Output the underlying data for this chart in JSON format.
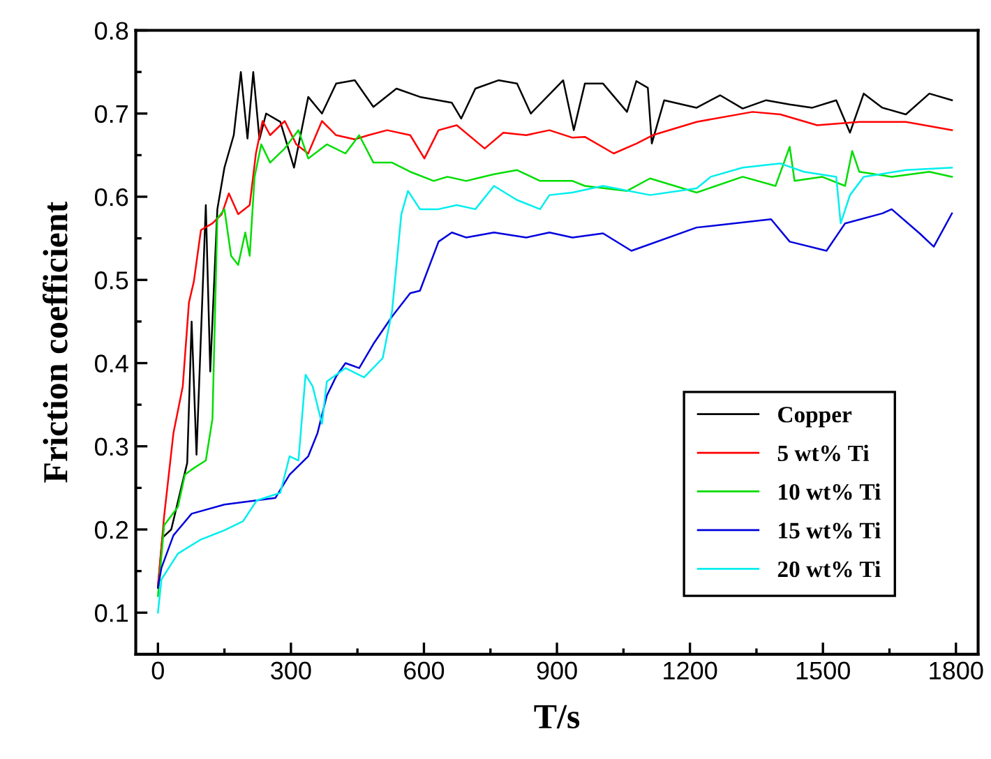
{
  "chart_data": {
    "type": "line",
    "xlabel": "T/s",
    "ylabel": "Friction coefficient",
    "xlim": [
      -50,
      1850
    ],
    "ylim": [
      0.05,
      0.8
    ],
    "xticks": [
      0,
      300,
      600,
      900,
      1200,
      1500,
      1800
    ],
    "yticks": [
      {
        "value": 0.1,
        "label": "0.1"
      },
      {
        "value": 0.2,
        "label": "0.2"
      },
      {
        "value": 0.3,
        "label": "0.3"
      },
      {
        "value": 0.4,
        "label": "0.4"
      },
      {
        "value": 0.5,
        "label": "0.5"
      },
      {
        "value": 0.6,
        "label": "0.6"
      },
      {
        "value": 0.7,
        "label": "0.7"
      },
      {
        "value": 0.8,
        "label": "0.8"
      }
    ],
    "grid": false,
    "legend": "bottom right",
    "marker": "none",
    "line_style": "solid",
    "series": [
      {
        "name": "Copper",
        "color": "#000000",
        "x": [
          0,
          10,
          30,
          66,
          76,
          87,
          108,
          118,
          134,
          150,
          171,
          187,
          202,
          215,
          229,
          244,
          276,
          307,
          339,
          370,
          402,
          444,
          486,
          538,
          591,
          663,
          684,
          716,
          768,
          810,
          841,
          914,
          938,
          963,
          1004,
          1058,
          1079,
          1105,
          1114,
          1142,
          1215,
          1268,
          1319,
          1372,
          1425,
          1476,
          1530,
          1561,
          1592,
          1634,
          1687,
          1740,
          1791
        ],
        "values": [
          0.13,
          0.19,
          0.2,
          0.28,
          0.45,
          0.29,
          0.59,
          0.39,
          0.585,
          0.635,
          0.674,
          0.75,
          0.67,
          0.75,
          0.669,
          0.7,
          0.69,
          0.635,
          0.72,
          0.7,
          0.736,
          0.74,
          0.708,
          0.73,
          0.72,
          0.713,
          0.694,
          0.73,
          0.74,
          0.736,
          0.7,
          0.74,
          0.68,
          0.736,
          0.736,
          0.702,
          0.739,
          0.731,
          0.664,
          0.716,
          0.707,
          0.722,
          0.706,
          0.716,
          0.711,
          0.707,
          0.716,
          0.677,
          0.724,
          0.707,
          0.699,
          0.724,
          0.716
        ]
      },
      {
        "name": "5 wt% Ti",
        "color": "#ff0000",
        "x": [
          0,
          14,
          35,
          56,
          70,
          81,
          97,
          123,
          144,
          160,
          181,
          207,
          221,
          236,
          253,
          286,
          312,
          339,
          370,
          402,
          444,
          475,
          517,
          569,
          601,
          633,
          674,
          737,
          779,
          831,
          883,
          935,
          963,
          1028,
          1080,
          1116,
          1215,
          1341,
          1404,
          1487,
          1582,
          1687,
          1791
        ],
        "values": [
          0.132,
          0.216,
          0.316,
          0.372,
          0.473,
          0.498,
          0.56,
          0.568,
          0.579,
          0.604,
          0.579,
          0.59,
          0.652,
          0.691,
          0.674,
          0.691,
          0.663,
          0.652,
          0.691,
          0.674,
          0.669,
          0.674,
          0.68,
          0.674,
          0.646,
          0.68,
          0.686,
          0.658,
          0.677,
          0.674,
          0.68,
          0.671,
          0.672,
          0.652,
          0.664,
          0.674,
          0.69,
          0.702,
          0.699,
          0.686,
          0.69,
          0.69,
          0.68
        ]
      },
      {
        "name": "10 wt% Ti",
        "color": "#00dd00",
        "x": [
          0,
          14,
          45,
          61,
          76,
          108,
          123,
          134,
          150,
          165,
          181,
          197,
          207,
          218,
          233,
          253,
          286,
          317,
          339,
          381,
          423,
          454,
          486,
          528,
          569,
          622,
          653,
          695,
          758,
          810,
          862,
          935,
          963,
          1058,
          1110,
          1215,
          1319,
          1393,
          1425,
          1436,
          1498,
          1550,
          1566,
          1582,
          1655,
          1740,
          1791
        ],
        "values": [
          0.12,
          0.205,
          0.227,
          0.266,
          0.272,
          0.283,
          0.333,
          0.574,
          0.585,
          0.529,
          0.518,
          0.557,
          0.529,
          0.624,
          0.663,
          0.641,
          0.658,
          0.68,
          0.646,
          0.663,
          0.652,
          0.674,
          0.641,
          0.641,
          0.63,
          0.619,
          0.624,
          0.619,
          0.627,
          0.632,
          0.619,
          0.619,
          0.613,
          0.607,
          0.622,
          0.605,
          0.624,
          0.613,
          0.66,
          0.619,
          0.624,
          0.613,
          0.655,
          0.63,
          0.624,
          0.63,
          0.624
        ]
      },
      {
        "name": "15 wt% Ti",
        "color": "#0000dd",
        "x": [
          0,
          8,
          35,
          76,
          150,
          223,
          265,
          297,
          339,
          360,
          381,
          402,
          423,
          454,
          486,
          528,
          569,
          591,
          633,
          663,
          695,
          758,
          831,
          883,
          935,
          1004,
          1068,
          1215,
          1383,
          1425,
          1508,
          1550,
          1634,
          1655,
          1718,
          1750,
          1791
        ],
        "values": [
          0.13,
          0.154,
          0.193,
          0.219,
          0.23,
          0.235,
          0.238,
          0.266,
          0.288,
          0.316,
          0.361,
          0.384,
          0.4,
          0.394,
          0.423,
          0.456,
          0.484,
          0.487,
          0.546,
          0.557,
          0.551,
          0.557,
          0.551,
          0.557,
          0.551,
          0.556,
          0.535,
          0.563,
          0.573,
          0.546,
          0.535,
          0.568,
          0.58,
          0.585,
          0.556,
          0.54,
          0.58
        ]
      },
      {
        "name": "20 wt% Ti",
        "color": "#00eeee",
        "x": [
          0,
          8,
          45,
          97,
          150,
          192,
          223,
          276,
          297,
          317,
          333,
          349,
          370,
          381,
          423,
          465,
          507,
          528,
          549,
          564,
          591,
          633,
          674,
          716,
          758,
          810,
          862,
          883,
          935,
          1004,
          1110,
          1215,
          1247,
          1319,
          1404,
          1457,
          1530,
          1540,
          1561,
          1592,
          1687,
          1791
        ],
        "values": [
          0.1,
          0.14,
          0.171,
          0.188,
          0.199,
          0.21,
          0.235,
          0.244,
          0.288,
          0.283,
          0.386,
          0.372,
          0.327,
          0.378,
          0.394,
          0.383,
          0.406,
          0.462,
          0.579,
          0.607,
          0.585,
          0.585,
          0.59,
          0.585,
          0.613,
          0.596,
          0.585,
          0.602,
          0.605,
          0.613,
          0.602,
          0.61,
          0.624,
          0.635,
          0.64,
          0.63,
          0.624,
          0.568,
          0.602,
          0.624,
          0.632,
          0.635
        ]
      }
    ]
  }
}
